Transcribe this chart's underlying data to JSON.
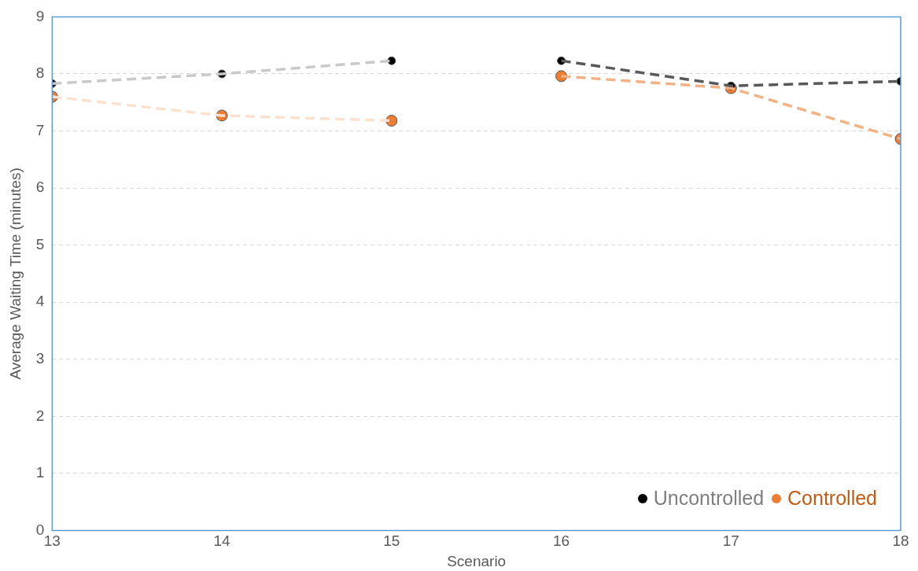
{
  "chart_data": {
    "type": "line",
    "xlabel": "Scenario",
    "ylabel": "Average Waiting Time (minutes)",
    "xlim": [
      13,
      18
    ],
    "xticks": [
      13,
      14,
      15,
      16,
      17,
      18
    ],
    "ylim": [
      0,
      9
    ],
    "yticks": [
      0,
      1,
      2,
      3,
      4,
      5,
      6,
      7,
      8,
      9
    ],
    "grid": "y",
    "legend": "bottom right",
    "line_style": "dashed",
    "marker": "circle",
    "series": [
      {
        "type": "line",
        "marker": "none",
        "color": "#c9c9c9",
        "x": [
          13,
          14,
          15
        ],
        "values": [
          7.83,
          8.0,
          8.23
        ]
      },
      {
        "type": "line",
        "marker": "none",
        "color": "#595959",
        "x": [
          16,
          17,
          18
        ],
        "values": [
          8.23,
          7.79,
          7.87
        ]
      },
      {
        "type": "line",
        "marker": "none",
        "color": "#fbe1cf",
        "x": [
          13,
          14,
          15
        ],
        "values": [
          7.6,
          7.27,
          7.18
        ]
      },
      {
        "type": "line",
        "marker": "none",
        "color": "#f4b183",
        "x": [
          16,
          17,
          18
        ],
        "values": [
          7.96,
          7.75,
          6.86
        ]
      },
      {
        "type": "scatter",
        "name": "Uncontrolled",
        "color": "#000000",
        "x": [
          13,
          14,
          15,
          16,
          17,
          18
        ],
        "values": [
          7.83,
          8.0,
          8.23,
          8.23,
          7.79,
          7.87
        ]
      },
      {
        "type": "scatter",
        "name": "Controlled",
        "color": "#ed7d31",
        "x": [
          13,
          14,
          15,
          16,
          17,
          18
        ],
        "values": [
          7.6,
          7.27,
          7.18,
          7.96,
          7.75,
          6.86
        ]
      }
    ]
  }
}
